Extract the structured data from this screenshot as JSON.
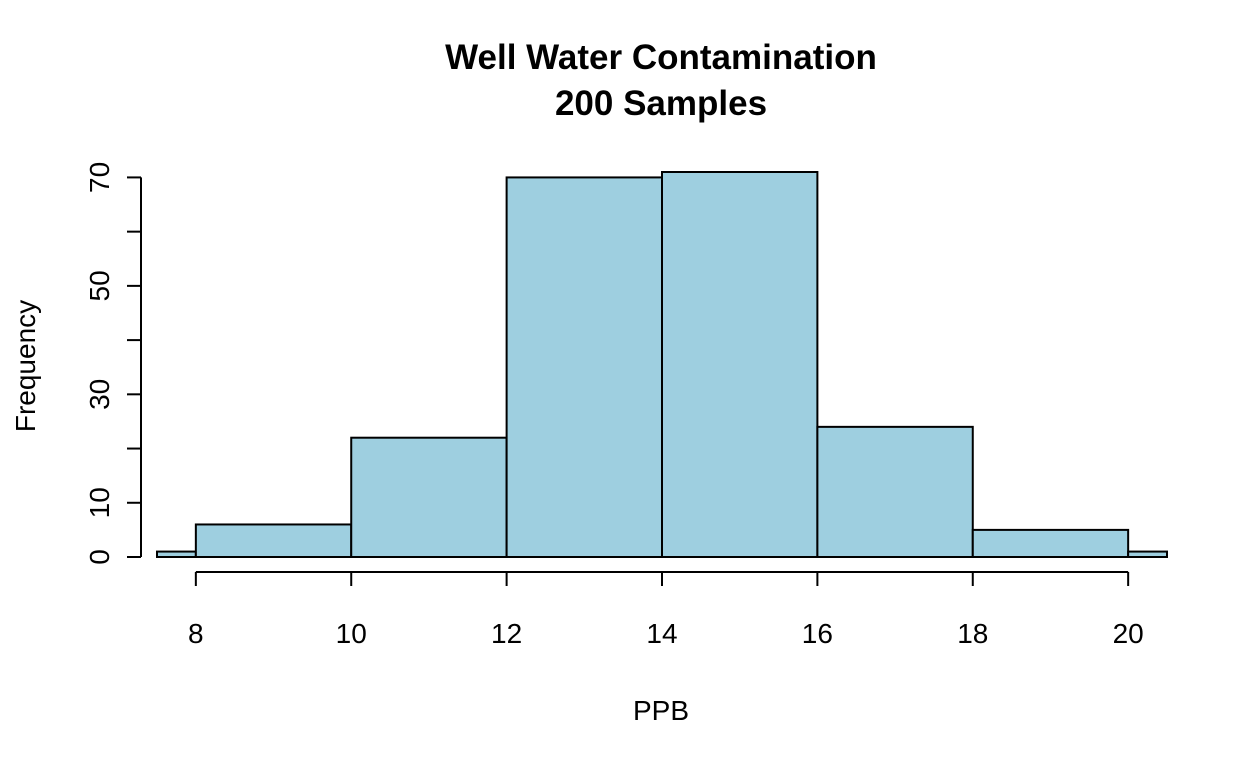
{
  "chart_data": {
    "type": "bar",
    "title": "Well Water Contamination",
    "subtitle": "200 Samples",
    "xlabel": "PPB",
    "ylabel": "Frequency",
    "bins": [
      {
        "start": 7,
        "end": 8,
        "count": 1
      },
      {
        "start": 8,
        "end": 10,
        "count": 6
      },
      {
        "start": 10,
        "end": 12,
        "count": 22
      },
      {
        "start": 12,
        "end": 14,
        "count": 70
      },
      {
        "start": 14,
        "end": 16,
        "count": 71
      },
      {
        "start": 16,
        "end": 18,
        "count": 24
      },
      {
        "start": 18,
        "end": 20,
        "count": 5
      },
      {
        "start": 20,
        "end": 21,
        "count": 1
      }
    ],
    "xlim": [
      7.5,
      20.5
    ],
    "ylim": [
      0,
      71
    ],
    "x_ticks": [
      8,
      10,
      12,
      14,
      16,
      18,
      20
    ],
    "y_ticks": [
      0,
      10,
      20,
      30,
      40,
      50,
      60,
      70
    ],
    "y_tick_labels": [
      "0",
      "",
      "",
      "30",
      "",
      "50",
      "",
      "70"
    ],
    "y_tick_labels_all": [
      "0",
      "10",
      "",
      "30",
      "",
      "50",
      "",
      "70"
    ],
    "bar_color": "#9ecfe0",
    "grid": false
  }
}
